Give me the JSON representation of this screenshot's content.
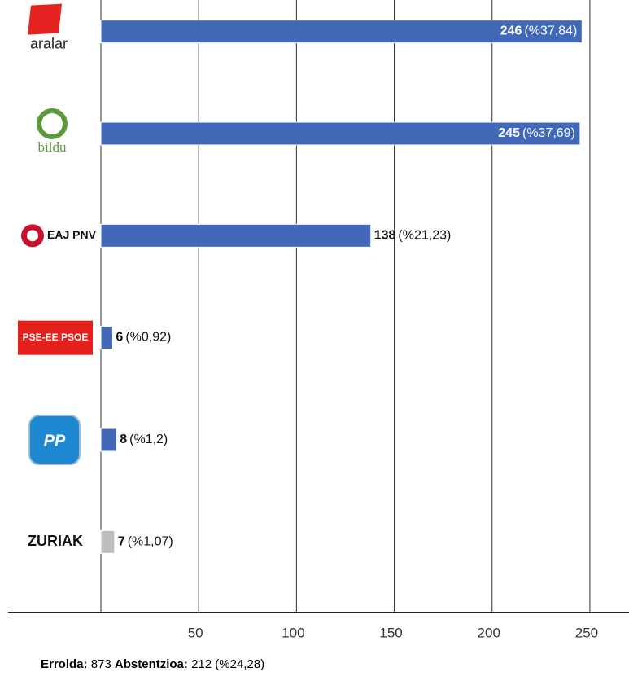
{
  "chart_data": {
    "type": "hbar",
    "categories": [
      "aralar",
      "bildu",
      "EAJ PNV",
      "PSE-EE PSOE",
      "PP",
      "ZURIAK"
    ],
    "values": [
      246,
      245,
      138,
      6,
      8,
      7
    ],
    "percent_labels": [
      "(%37,84)",
      "(%37,69)",
      "(%21,23)",
      "(%0,92)",
      "(%1,2)",
      "(%1,07)"
    ],
    "colors": [
      "#4169b8",
      "#4169b8",
      "#4169b8",
      "#4169b8",
      "#4169b8",
      "#bdbdbd"
    ],
    "xlim": [
      0,
      270
    ],
    "xticks": [
      50,
      100,
      150,
      200,
      250
    ],
    "grid": true
  },
  "footer": {
    "errolda_label": "Errolda:",
    "errolda": "873",
    "abstentzioa_label": "Abstentzioa:",
    "abstentzioa": "212",
    "abstentzioa_pct": "(%24,28)"
  }
}
